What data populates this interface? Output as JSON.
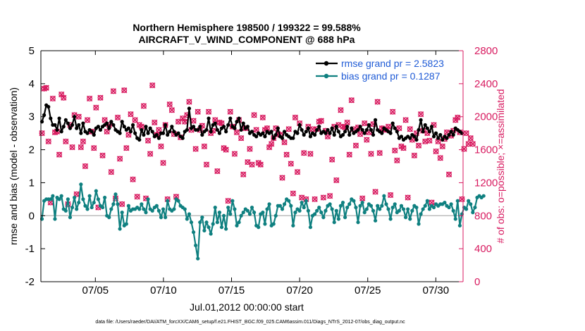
{
  "chart_data": {
    "type": "line",
    "title": "Northern Hemisphere 198500 / 199322 = 99.588%",
    "subtitle": "AIRCRAFT_V_WIND_COMPONENT @ 688 hPa",
    "xlabel": "Jul.01,2012 00:00:00 start",
    "ylabel_left": "rmse and bias (model - observation)",
    "ylabel_right": "# of obs: o=possible; ×=assimilated",
    "xlim": [
      1,
      32
    ],
    "ylim_left": [
      -2,
      5
    ],
    "ylim_right": [
      0,
      2800
    ],
    "x_ticks": [
      5,
      10,
      15,
      20,
      25,
      30
    ],
    "x_tick_labels": [
      "07/05",
      "07/10",
      "07/15",
      "07/20",
      "07/25",
      "07/30"
    ],
    "y_ticks_left": [
      -2,
      -1,
      0,
      1,
      2,
      3,
      4,
      5
    ],
    "y_tick_labels_left": [
      "-2",
      "-1",
      "0",
      "1",
      "2",
      "3",
      "4",
      "5"
    ],
    "y_ticks_right": [
      0,
      400,
      800,
      1200,
      1600,
      2000,
      2400,
      2800
    ],
    "y_tick_labels_right": [
      "0",
      "400",
      "800",
      "1200",
      "1600",
      "2000",
      "2400",
      "2800"
    ],
    "legend_position": "top-right",
    "colors": {
      "rmse": "#000000",
      "bias": "#0f8080",
      "obs": "#d81b60",
      "zero_line": "#b0b0b0",
      "legend_text": "#1f5bd6",
      "right_axis": "#d81b60"
    },
    "series": [
      {
        "name": "rmse grand pr = 2.5823",
        "axis": "left",
        "values": [
          2.85,
          3.05,
          3.35,
          3.3,
          2.95,
          2.75,
          2.75,
          2.6,
          2.95,
          2.55,
          2.7,
          2.9,
          2.8,
          2.65,
          2.75,
          3.0,
          2.65,
          2.75,
          2.5,
          2.8,
          2.55,
          2.5,
          2.6,
          2.55,
          2.45,
          2.65,
          2.7,
          2.6,
          2.7,
          2.75,
          2.8,
          2.65,
          2.85,
          2.75,
          2.6,
          2.55,
          2.5,
          2.85,
          2.7,
          2.6,
          2.65,
          2.55,
          2.75,
          2.5,
          2.35,
          2.3,
          2.6,
          2.45,
          2.7,
          2.5,
          2.65,
          2.55,
          2.4,
          2.45,
          2.35,
          2.5,
          2.5,
          2.75,
          2.45,
          2.55,
          2.7,
          2.55,
          2.45,
          2.5,
          2.4,
          2.35,
          2.55,
          2.6,
          3.25,
          2.65,
          2.7,
          2.6,
          2.6,
          2.7,
          2.45,
          2.55,
          2.6,
          2.95,
          2.55,
          2.75,
          2.8,
          2.6,
          2.5,
          2.65,
          2.7,
          2.55,
          2.75,
          2.95,
          2.7,
          2.65,
          2.85,
          2.95,
          2.6,
          2.8,
          2.65,
          2.7,
          2.5,
          2.55,
          2.45,
          2.4,
          2.5,
          2.45,
          2.5,
          2.4,
          2.55,
          2.5,
          2.55,
          2.35,
          2.45,
          2.65,
          2.4,
          2.35,
          2.55,
          2.45,
          2.4,
          2.35,
          2.35,
          2.55,
          2.5,
          2.75,
          2.6,
          2.45,
          2.55,
          2.65,
          2.4,
          2.5,
          2.45,
          2.6,
          2.7,
          2.5,
          2.55,
          2.5,
          2.6,
          2.5,
          2.65,
          2.45,
          2.7,
          2.55,
          2.4,
          2.45,
          2.55,
          2.7,
          2.45,
          2.65,
          2.5,
          2.55,
          2.6,
          2.7,
          2.6,
          2.5,
          2.6,
          2.75,
          2.6,
          2.45,
          2.9,
          2.6,
          2.55,
          2.5,
          2.65,
          2.6,
          2.55,
          2.5,
          2.8,
          2.65,
          2.55,
          2.35,
          2.4,
          2.3,
          2.35,
          2.4,
          2.35,
          2.45,
          2.4,
          2.3,
          2.6,
          2.9,
          2.55,
          2.75,
          2.65,
          2.55,
          2.7,
          2.4,
          2.5,
          2.35,
          2.45,
          2.3,
          2.4,
          2.35,
          2.45,
          2.55,
          2.45,
          2.65,
          2.6,
          2.55,
          2.5
        ]
      },
      {
        "name": "bias grand pr = 0.1287",
        "axis": "left",
        "values": [
          -0.1,
          0.45,
          0.5,
          0.5,
          0.5,
          0.6,
          -0.1,
          0.55,
          0.5,
          0.6,
          0.2,
          0.15,
          0.5,
          -0.05,
          0.25,
          0.55,
          0.2,
          0.4,
          0.95,
          0.5,
          0.3,
          0.2,
          0.6,
          0.25,
          0.4,
          0.75,
          0.5,
          0.3,
          0.25,
          0.55,
          0.0,
          -0.05,
          0.2,
          0.35,
          0.65,
          0.35,
          -0.4,
          0.1,
          -0.3,
          -0.25,
          0.3,
          0.15,
          0.2,
          0.2,
          0.25,
          0.2,
          0.35,
          0.2,
          0.1,
          0.5,
          0.2,
          0.15,
          0.25,
          0.3,
          0.15,
          -0.05,
          0.2,
          -0.05,
          0.45,
          0.2,
          0.15,
          0.2,
          0.5,
          0.45,
          0.3,
          0.25,
          0.2,
          -0.1,
          0.05,
          -0.2,
          -0.5,
          -0.9,
          -1.3,
          -0.2,
          -0.05,
          -0.45,
          -0.2,
          -0.35,
          -0.55,
          -0.25,
          0.25,
          -0.2,
          0.1,
          -0.35,
          0.0,
          -0.4,
          0.25,
          0.05,
          0.45,
          0.2,
          -0.3,
          -0.2,
          0.0,
          0.1,
          0.2,
          0.15,
          0.05,
          0.25,
          0.1,
          -0.3,
          -0.35,
          0.05,
          0.1,
          -0.25,
          0.2,
          0.35,
          -0.3,
          -0.25,
          0.0,
          0.3,
          0.3,
          0.2,
          0.35,
          0.5,
          0.45,
          0.3,
          -0.3,
          0.1,
          0.2,
          0.15,
          0.4,
          0.25,
          0.45,
          0.15,
          -0.35,
          0.0,
          0.05,
          0.15,
          0.25,
          0.1,
          -0.05,
          0.15,
          0.3,
          0.35,
          0.2,
          -0.2,
          0.15,
          -0.1,
          0.3,
          0.4,
          -0.05,
          0.25,
          0.35,
          0.5,
          0.45,
          0.25,
          -0.2,
          0.3,
          0.4,
          0.1,
          0.2,
          0.35,
          0.3,
          0.15,
          -0.15,
          0.3,
          0.2,
          0.3,
          0.6,
          0.35,
          0.2,
          -0.1,
          0.25,
          0.35,
          0.1,
          0.15,
          0.3,
          0.2,
          -0.05,
          0.2,
          -0.1,
          0.15,
          0.3,
          0.25,
          -0.25,
          0.05,
          0.2,
          0.3,
          0.45,
          0.2,
          0.3,
          0.25,
          0.35,
          0.3,
          0.35,
          0.35,
          0.4,
          0.3,
          0.25,
          0.35,
          0.15,
          -0.1,
          0.45,
          -0.3,
          0.05,
          0.25,
          0.2,
          0.45,
          0.35,
          0.1,
          0.25,
          0.55,
          0.6,
          0.55,
          0.6
        ]
      },
      {
        "name": "observations (possible / assimilated)",
        "axis": "right",
        "values": [
          1800,
          2340,
          2350,
          1700,
          960,
          2220,
          1810,
          1820,
          1540,
          2270,
          2230,
          1700,
          940,
          1900,
          1630,
          2020,
          1060,
          2000,
          1630,
          1700,
          1400,
          1960,
          2220,
          1820,
          1620,
          2110,
          900,
          2230,
          1530,
          1960,
          1820,
          1900,
          1330,
          2310,
          1010,
          1990,
          1490,
          940,
          2320,
          1620,
          1780,
          2030,
          1240,
          1960,
          1030,
          1900,
          1880,
          2130,
          1010,
          1710,
          1550,
          2380,
          1930,
          1780,
          1840,
          1640,
          1440,
          1900,
          1000,
          2150,
          2080,
          1790,
          1030,
          1940,
          1750,
          1980,
          1940,
          2020,
          2180,
          1840,
          1950,
          1610,
          2060,
          1840,
          1890,
          1640,
          1420,
          2060,
          1800,
          1830,
          1960,
          1340,
          1930,
          1920,
          1620,
          1600,
          980,
          2060,
          1880,
          1550,
          1810,
          1960,
          1740,
          1300,
          1860,
          1450,
          1610,
          1420,
          2020,
          1840,
          1440,
          1420,
          1990,
          1840,
          1860,
          1630,
          1670,
          1740,
          1860,
          1790,
          1780,
          1260,
          1690,
          1540,
          1850,
          1430,
          1070,
          1990,
          1330,
          1920,
          1020,
          1560,
          1000,
          1880,
          1550,
          1850,
          1000,
          1850,
          1940,
          1950,
          1020,
          1830,
          1760,
          1040,
          1480,
          1880,
          1230,
          1900,
          2080,
          1880,
          1870,
          1930,
          1540,
          2200,
          1850,
          1650,
          1870,
          1790,
          1010,
          1920,
          1720,
          1810,
          1550,
          1910,
          1090,
          2180,
          1560,
          1860,
          1850,
          1840,
          1880,
          1050,
          2060,
          1590,
          1470,
          1860,
          1640,
          1620,
          1960,
          1020,
          1850,
          1720,
          1530,
          1800,
          1650,
          2030,
          1830,
          1700,
          1800,
          1710,
          960,
          1900,
          1580,
          1700,
          1500,
          1640,
          1730,
          1810,
          1300,
          1770,
          1830,
          1960,
          1990,
          1810,
          1000,
          1610,
          1800,
          1670,
          1740,
          1670
        ]
      }
    ]
  },
  "legend": {
    "rmse_label": "rmse grand pr = 2.5823",
    "bias_label": "bias grand pr = 0.1287"
  },
  "footer": "data file: /Users/raeder/DAI/ATM_forcXX/CAM6_setup/f.e21.FHIST_BGC.f09_025.CAM6assim.011/Diags_NTrS_2012-07/obs_diag_output.nc"
}
